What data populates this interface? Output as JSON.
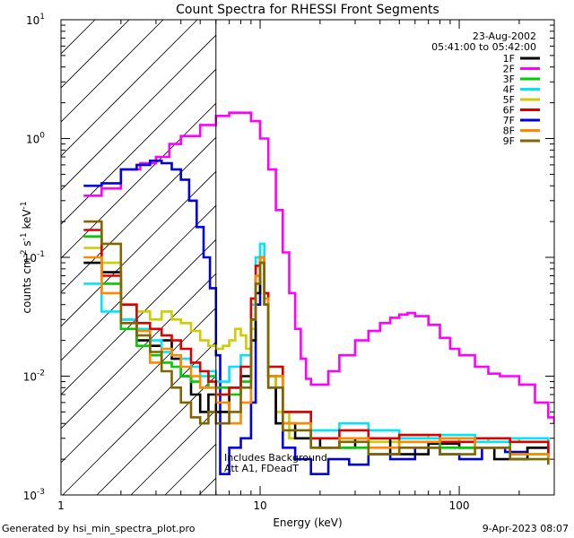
{
  "chart_data": {
    "type": "line",
    "title": "Count Spectra for RHESSI Front Segments",
    "xlabel": "Energy (keV)",
    "ylabel_parts": [
      "counts cm",
      "-2",
      " s",
      "-1",
      " keV",
      "-1"
    ],
    "xscale": "log",
    "yscale": "log",
    "xlim": [
      1,
      300
    ],
    "ylim": [
      0.001,
      10
    ],
    "x_tick_labels": [
      "1",
      "10",
      "100"
    ],
    "y_tick_labels": [
      {
        "base": "10",
        "exp": "-3"
      },
      {
        "base": "10",
        "exp": "-2"
      },
      {
        "base": "10",
        "exp": "-1"
      },
      {
        "base": "10",
        "exp": "0"
      },
      {
        "base": "10",
        "exp": "1"
      }
    ],
    "hatched_region_x": [
      1,
      6
    ],
    "date": "23-Aug-2002",
    "time_range": "05:41:00 to 05:42:00",
    "annotation": [
      "Includes Background",
      "Att A1, FDeadT"
    ],
    "legend": [
      {
        "name": "1F",
        "color": "#000000"
      },
      {
        "name": "2F",
        "color": "#ff00ff"
      },
      {
        "name": "3F",
        "color": "#00cc00"
      },
      {
        "name": "4F",
        "color": "#00e5ff"
      },
      {
        "name": "5F",
        "color": "#cccc00"
      },
      {
        "name": "6F",
        "color": "#dd0000"
      },
      {
        "name": "7F",
        "color": "#0000dd"
      },
      {
        "name": "8F",
        "color": "#ff8800"
      },
      {
        "name": "9F",
        "color": "#806600"
      }
    ],
    "series": [
      {
        "name": "2F",
        "color": "#ff00ff",
        "points": [
          [
            1.3,
            0.33
          ],
          [
            1.6,
            0.38
          ],
          [
            2,
            0.55
          ],
          [
            2.5,
            0.62
          ],
          [
            3,
            0.7
          ],
          [
            3.5,
            0.9
          ],
          [
            4,
            1.05
          ],
          [
            5,
            1.3
          ],
          [
            6,
            1.55
          ],
          [
            7,
            1.65
          ],
          [
            8,
            1.65
          ],
          [
            9,
            1.4
          ],
          [
            10,
            1
          ],
          [
            11,
            0.55
          ],
          [
            12,
            0.25
          ],
          [
            13,
            0.11
          ],
          [
            14,
            0.05
          ],
          [
            15,
            0.025
          ],
          [
            16,
            0.014
          ],
          [
            17,
            0.0095
          ],
          [
            18,
            0.0085
          ],
          [
            20,
            0.0085
          ],
          [
            22,
            0.011
          ],
          [
            25,
            0.015
          ],
          [
            30,
            0.02
          ],
          [
            35,
            0.024
          ],
          [
            40,
            0.028
          ],
          [
            45,
            0.031
          ],
          [
            50,
            0.033
          ],
          [
            55,
            0.034
          ],
          [
            60,
            0.032
          ],
          [
            70,
            0.027
          ],
          [
            80,
            0.021
          ],
          [
            90,
            0.017
          ],
          [
            100,
            0.015
          ],
          [
            120,
            0.012
          ],
          [
            140,
            0.0105
          ],
          [
            160,
            0.01
          ],
          [
            180,
            0.01
          ],
          [
            200,
            0.0085
          ],
          [
            240,
            0.006
          ],
          [
            280,
            0.0045
          ],
          [
            300,
            0.004
          ]
        ]
      },
      {
        "name": "7F",
        "color": "#0000dd",
        "points": [
          [
            1.3,
            0.4
          ],
          [
            1.6,
            0.42
          ],
          [
            2,
            0.55
          ],
          [
            2.4,
            0.6
          ],
          [
            2.8,
            0.65
          ],
          [
            3.2,
            0.62
          ],
          [
            3.6,
            0.55
          ],
          [
            4,
            0.45
          ],
          [
            4.4,
            0.3
          ],
          [
            4.8,
            0.18
          ],
          [
            5.2,
            0.1
          ],
          [
            5.6,
            0.055
          ],
          [
            6,
            0.015
          ],
          [
            6.3,
            0.0015
          ],
          [
            7,
            0.0025
          ],
          [
            8,
            0.003
          ],
          [
            9,
            0.006
          ],
          [
            9.5,
            0.04
          ],
          [
            10,
            0.1
          ],
          [
            10.5,
            0.05
          ],
          [
            11,
            0.01
          ],
          [
            12,
            0.004
          ],
          [
            13,
            0.0025
          ],
          [
            15,
            0.002
          ],
          [
            18,
            0.0015
          ],
          [
            22,
            0.002
          ],
          [
            28,
            0.0018
          ],
          [
            35,
            0.0022
          ],
          [
            45,
            0.002
          ],
          [
            60,
            0.0025
          ],
          [
            80,
            0.0022
          ],
          [
            100,
            0.002
          ],
          [
            130,
            0.0025
          ],
          [
            170,
            0.0023
          ],
          [
            220,
            0.0025
          ],
          [
            280,
            0.0022
          ]
        ]
      },
      {
        "name": "5F",
        "color": "#cccc00",
        "points": [
          [
            1.3,
            0.12
          ],
          [
            1.6,
            0.09
          ],
          [
            2,
            0.04
          ],
          [
            2.4,
            0.035
          ],
          [
            2.8,
            0.03
          ],
          [
            3.2,
            0.035
          ],
          [
            3.6,
            0.03
          ],
          [
            4,
            0.028
          ],
          [
            4.5,
            0.024
          ],
          [
            5,
            0.02
          ],
          [
            5.5,
            0.018
          ],
          [
            6,
            0.017
          ],
          [
            6.5,
            0.018
          ],
          [
            7,
            0.02
          ],
          [
            7.5,
            0.025
          ],
          [
            8,
            0.022
          ],
          [
            8.5,
            0.017
          ],
          [
            9,
            0.025
          ],
          [
            9.5,
            0.06
          ],
          [
            10,
            0.09
          ],
          [
            10.5,
            0.04
          ],
          [
            11,
            0.01
          ],
          [
            12,
            0.005
          ],
          [
            14,
            0.003
          ],
          [
            18,
            0.0025
          ],
          [
            25,
            0.003
          ],
          [
            35,
            0.0028
          ],
          [
            50,
            0.0032
          ],
          [
            70,
            0.003
          ],
          [
            100,
            0.0028
          ],
          [
            140,
            0.003
          ],
          [
            200,
            0.0028
          ],
          [
            280,
            0.0025
          ]
        ]
      },
      {
        "name": "1F",
        "color": "#000000",
        "points": [
          [
            1.3,
            0.09
          ],
          [
            1.6,
            0.075
          ],
          [
            2,
            0.03
          ],
          [
            2.4,
            0.02
          ],
          [
            2.8,
            0.018
          ],
          [
            3.2,
            0.02
          ],
          [
            3.6,
            0.014
          ],
          [
            4,
            0.01
          ],
          [
            4.5,
            0.007
          ],
          [
            5,
            0.005
          ],
          [
            5.5,
            0.007
          ],
          [
            6,
            0.005
          ],
          [
            7,
            0.008
          ],
          [
            8,
            0.01
          ],
          [
            9,
            0.02
          ],
          [
            9.5,
            0.05
          ],
          [
            10,
            0.09
          ],
          [
            10.5,
            0.04
          ],
          [
            11,
            0.008
          ],
          [
            12,
            0.004
          ],
          [
            15,
            0.003
          ],
          [
            20,
            0.0025
          ],
          [
            30,
            0.003
          ],
          [
            45,
            0.0022
          ],
          [
            70,
            0.0027
          ],
          [
            100,
            0.0025
          ],
          [
            150,
            0.002
          ],
          [
            220,
            0.0025
          ],
          [
            280,
            0.002
          ]
        ]
      },
      {
        "name": "3F",
        "color": "#00cc00",
        "points": [
          [
            1.3,
            0.15
          ],
          [
            1.6,
            0.06
          ],
          [
            2,
            0.025
          ],
          [
            2.4,
            0.018
          ],
          [
            2.8,
            0.015
          ],
          [
            3.2,
            0.013
          ],
          [
            3.6,
            0.012
          ],
          [
            4,
            0.01
          ],
          [
            4.5,
            0.009
          ],
          [
            5,
            0.008
          ],
          [
            5.5,
            0.01
          ],
          [
            6,
            0.008
          ],
          [
            7,
            0.007
          ],
          [
            8,
            0.009
          ],
          [
            9,
            0.03
          ],
          [
            9.5,
            0.07
          ],
          [
            10,
            0.1
          ],
          [
            10.5,
            0.05
          ],
          [
            11,
            0.01
          ],
          [
            13,
            0.004
          ],
          [
            18,
            0.003
          ],
          [
            25,
            0.0025
          ],
          [
            35,
            0.003
          ],
          [
            50,
            0.0028
          ],
          [
            80,
            0.0025
          ],
          [
            120,
            0.003
          ],
          [
            180,
            0.0022
          ],
          [
            280,
            0.002
          ]
        ]
      },
      {
        "name": "4F",
        "color": "#00e5ff",
        "points": [
          [
            1.3,
            0.06
          ],
          [
            1.6,
            0.035
          ],
          [
            2,
            0.03
          ],
          [
            2.4,
            0.025
          ],
          [
            2.8,
            0.02
          ],
          [
            3.2,
            0.016
          ],
          [
            3.6,
            0.015
          ],
          [
            4,
            0.014
          ],
          [
            4.5,
            0.012
          ],
          [
            5,
            0.01
          ],
          [
            5.5,
            0.011
          ],
          [
            6,
            0.009
          ],
          [
            7,
            0.012
          ],
          [
            8,
            0.015
          ],
          [
            9,
            0.04
          ],
          [
            9.5,
            0.1
          ],
          [
            10,
            0.13
          ],
          [
            10.5,
            0.05
          ],
          [
            11,
            0.012
          ],
          [
            13,
            0.005
          ],
          [
            18,
            0.0035
          ],
          [
            25,
            0.004
          ],
          [
            35,
            0.0035
          ],
          [
            50,
            0.003
          ],
          [
            80,
            0.0032
          ],
          [
            120,
            0.0028
          ],
          [
            180,
            0.003
          ],
          [
            280,
            0.0025
          ]
        ]
      },
      {
        "name": "6F",
        "color": "#dd0000",
        "points": [
          [
            1.3,
            0.17
          ],
          [
            1.6,
            0.07
          ],
          [
            2,
            0.04
          ],
          [
            2.4,
            0.028
          ],
          [
            2.8,
            0.025
          ],
          [
            3.2,
            0.022
          ],
          [
            3.6,
            0.02
          ],
          [
            4,
            0.017
          ],
          [
            4.5,
            0.013
          ],
          [
            5,
            0.011
          ],
          [
            5.5,
            0.009
          ],
          [
            6,
            0.007
          ],
          [
            7,
            0.008
          ],
          [
            8,
            0.012
          ],
          [
            9,
            0.045
          ],
          [
            9.5,
            0.085
          ],
          [
            10,
            0.1
          ],
          [
            10.5,
            0.05
          ],
          [
            11,
            0.012
          ],
          [
            13,
            0.005
          ],
          [
            18,
            0.003
          ],
          [
            25,
            0.0035
          ],
          [
            35,
            0.003
          ],
          [
            50,
            0.0032
          ],
          [
            80,
            0.0028
          ],
          [
            120,
            0.003
          ],
          [
            180,
            0.0028
          ],
          [
            280,
            0.0022
          ]
        ]
      },
      {
        "name": "8F",
        "color": "#ff8800",
        "points": [
          [
            1.3,
            0.1
          ],
          [
            1.6,
            0.05
          ],
          [
            2,
            0.028
          ],
          [
            2.4,
            0.024
          ],
          [
            2.8,
            0.013
          ],
          [
            3.2,
            0.017
          ],
          [
            3.6,
            0.015
          ],
          [
            4,
            0.012
          ],
          [
            4.5,
            0.01
          ],
          [
            5,
            0.008
          ],
          [
            5.5,
            0.008
          ],
          [
            6,
            0.006
          ],
          [
            7,
            0.004
          ],
          [
            8,
            0.006
          ],
          [
            9,
            0.03
          ],
          [
            9.5,
            0.07
          ],
          [
            10,
            0.1
          ],
          [
            10.5,
            0.045
          ],
          [
            11,
            0.01
          ],
          [
            13,
            0.004
          ],
          [
            18,
            0.0025
          ],
          [
            25,
            0.003
          ],
          [
            35,
            0.0025
          ],
          [
            50,
            0.0028
          ],
          [
            80,
            0.003
          ],
          [
            120,
            0.0025
          ],
          [
            180,
            0.0022
          ],
          [
            280,
            0.0018
          ]
        ]
      },
      {
        "name": "9F",
        "color": "#806600",
        "points": [
          [
            1.3,
            0.2
          ],
          [
            1.6,
            0.13
          ],
          [
            2,
            0.028
          ],
          [
            2.4,
            0.022
          ],
          [
            2.8,
            0.016
          ],
          [
            3.2,
            0.011
          ],
          [
            3.6,
            0.008
          ],
          [
            4,
            0.006
          ],
          [
            4.5,
            0.0045
          ],
          [
            5,
            0.004
          ],
          [
            5.5,
            0.005
          ],
          [
            6,
            0.004
          ],
          [
            7,
            0.005
          ],
          [
            8,
            0.008
          ],
          [
            9,
            0.03
          ],
          [
            9.5,
            0.06
          ],
          [
            10,
            0.09
          ],
          [
            10.5,
            0.04
          ],
          [
            11,
            0.008
          ],
          [
            13,
            0.0035
          ],
          [
            18,
            0.0025
          ],
          [
            25,
            0.0028
          ],
          [
            35,
            0.0022
          ],
          [
            50,
            0.0025
          ],
          [
            80,
            0.0022
          ],
          [
            120,
            0.0025
          ],
          [
            180,
            0.002
          ],
          [
            280,
            0.0018
          ]
        ]
      }
    ]
  },
  "footer": {
    "generated_by": "Generated by hsi_min_spectra_plot.pro",
    "timestamp": "9-Apr-2023 08:07"
  }
}
